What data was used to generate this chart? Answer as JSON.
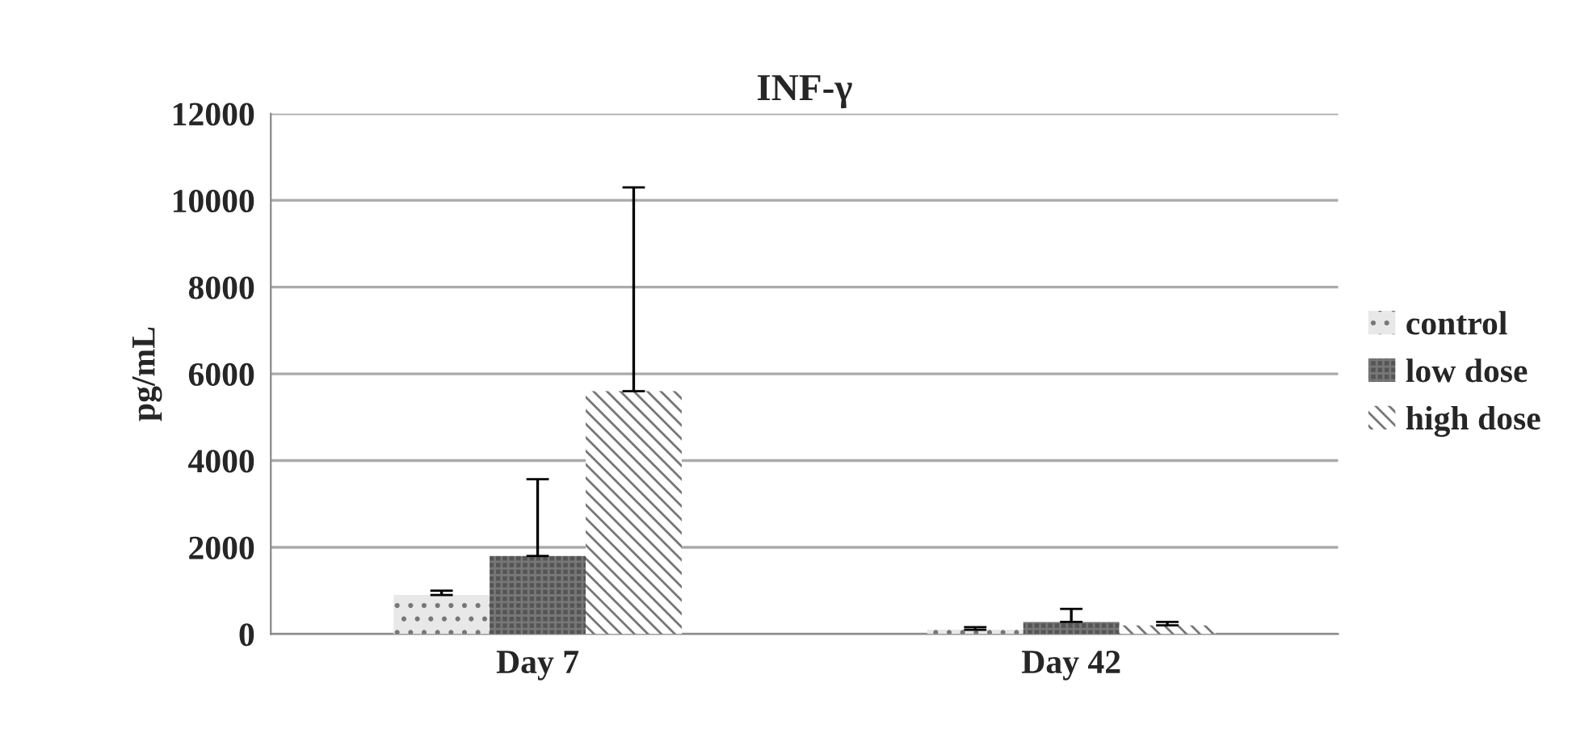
{
  "chart_data": {
    "type": "bar",
    "title": "INF-γ",
    "ylabel": "pg/mL",
    "categories": [
      "Day 7",
      "Day 42"
    ],
    "series": [
      {
        "name": "control",
        "color": "#e8e8e8",
        "values": [
          900,
          100
        ],
        "errors": [
          [
            900,
            1000
          ],
          [
            100,
            160
          ]
        ]
      },
      {
        "name": "low dose",
        "color": "#555555",
        "values": [
          1800,
          280
        ],
        "errors": [
          [
            1800,
            3570
          ],
          [
            280,
            580
          ]
        ]
      },
      {
        "name": "high dose",
        "color": "#ffffff",
        "values": [
          5600,
          200
        ],
        "errors": [
          [
            5600,
            10300
          ],
          [
            200,
            280
          ]
        ]
      }
    ],
    "ylim": [
      0,
      12000
    ],
    "yticks": [
      0,
      2000,
      4000,
      6000,
      8000,
      10000,
      12000
    ],
    "grid": "y",
    "legend": "right"
  }
}
